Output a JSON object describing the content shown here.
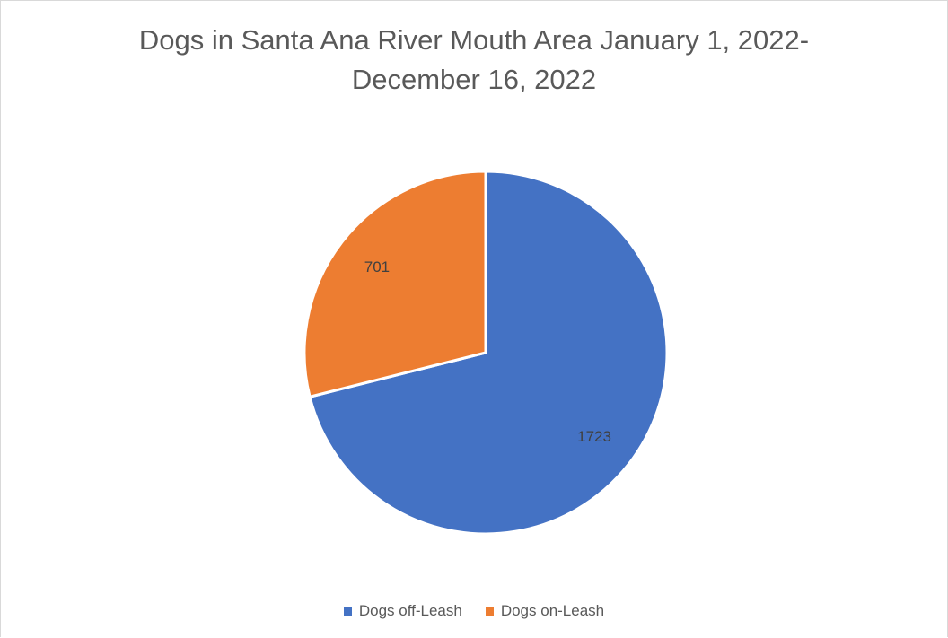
{
  "chart_data": {
    "type": "pie",
    "title_lines": [
      "Dogs in Santa Ana River Mouth Area January 1, 2022-",
      "December 16, 2022"
    ],
    "categories": [
      "Dogs off-Leash",
      "Dogs on-Leash"
    ],
    "values": [
      1723,
      701
    ],
    "data_labels": [
      "1723",
      "701"
    ],
    "colors": [
      "#4472C4",
      "#ED7D31"
    ],
    "start_angle_deg": 0,
    "direction": "clockwise",
    "legend_position": "bottom"
  }
}
